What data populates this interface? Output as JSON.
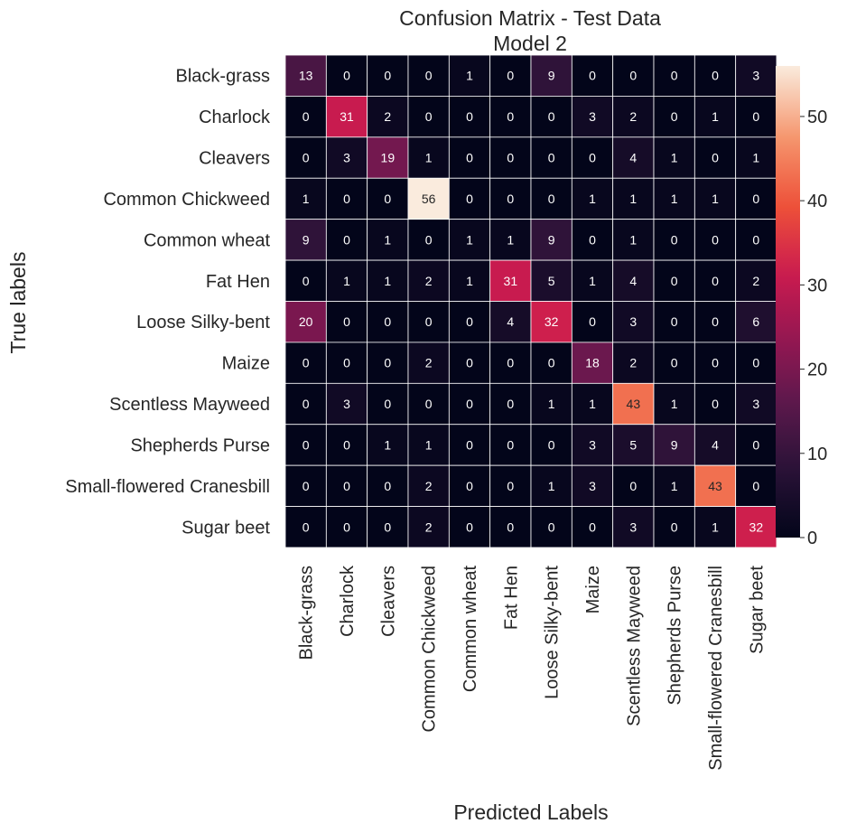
{
  "chart_data": {
    "type": "heatmap",
    "title": "Confusion Matrix - Test Data",
    "subtitle": "Model 2",
    "xlabel": "Predicted Labels",
    "ylabel": "True labels",
    "row_labels": [
      "Black-grass",
      "Charlock",
      "Cleavers",
      "Common Chickweed",
      "Common wheat",
      "Fat Hen",
      "Loose Silky-bent",
      "Maize",
      "Scentless Mayweed",
      "Shepherds Purse",
      "Small-flowered Cranesbill",
      "Sugar beet"
    ],
    "col_labels": [
      "Black-grass",
      "Charlock",
      "Cleavers",
      "Common Chickweed",
      "Common wheat",
      "Fat Hen",
      "Loose Silky-bent",
      "Maize",
      "Scentless Mayweed",
      "Shepherds Purse",
      "Small-flowered Cranesbill",
      "Sugar beet"
    ],
    "values": [
      [
        13,
        0,
        0,
        0,
        1,
        0,
        9,
        0,
        0,
        0,
        0,
        3
      ],
      [
        0,
        31,
        2,
        0,
        0,
        0,
        0,
        3,
        2,
        0,
        1,
        0
      ],
      [
        0,
        3,
        19,
        1,
        0,
        0,
        0,
        0,
        4,
        1,
        0,
        1
      ],
      [
        1,
        0,
        0,
        56,
        0,
        0,
        0,
        1,
        1,
        1,
        1,
        0
      ],
      [
        9,
        0,
        1,
        0,
        1,
        1,
        9,
        0,
        1,
        0,
        0,
        0
      ],
      [
        0,
        1,
        1,
        2,
        1,
        31,
        5,
        1,
        4,
        0,
        0,
        2
      ],
      [
        20,
        0,
        0,
        0,
        0,
        4,
        32,
        0,
        3,
        0,
        0,
        6
      ],
      [
        0,
        0,
        0,
        2,
        0,
        0,
        0,
        18,
        2,
        0,
        0,
        0
      ],
      [
        0,
        3,
        0,
        0,
        0,
        0,
        1,
        1,
        43,
        1,
        0,
        3
      ],
      [
        0,
        0,
        1,
        1,
        0,
        0,
        0,
        3,
        5,
        9,
        4,
        0
      ],
      [
        0,
        0,
        0,
        2,
        0,
        0,
        1,
        3,
        0,
        1,
        43,
        0
      ],
      [
        0,
        0,
        0,
        2,
        0,
        0,
        0,
        0,
        3,
        0,
        1,
        32
      ]
    ],
    "colorbar": {
      "vmin": 0,
      "vmax": 56,
      "ticks": [
        0,
        10,
        20,
        30,
        40,
        50
      ]
    },
    "colormap": "rocket",
    "grid": true
  }
}
